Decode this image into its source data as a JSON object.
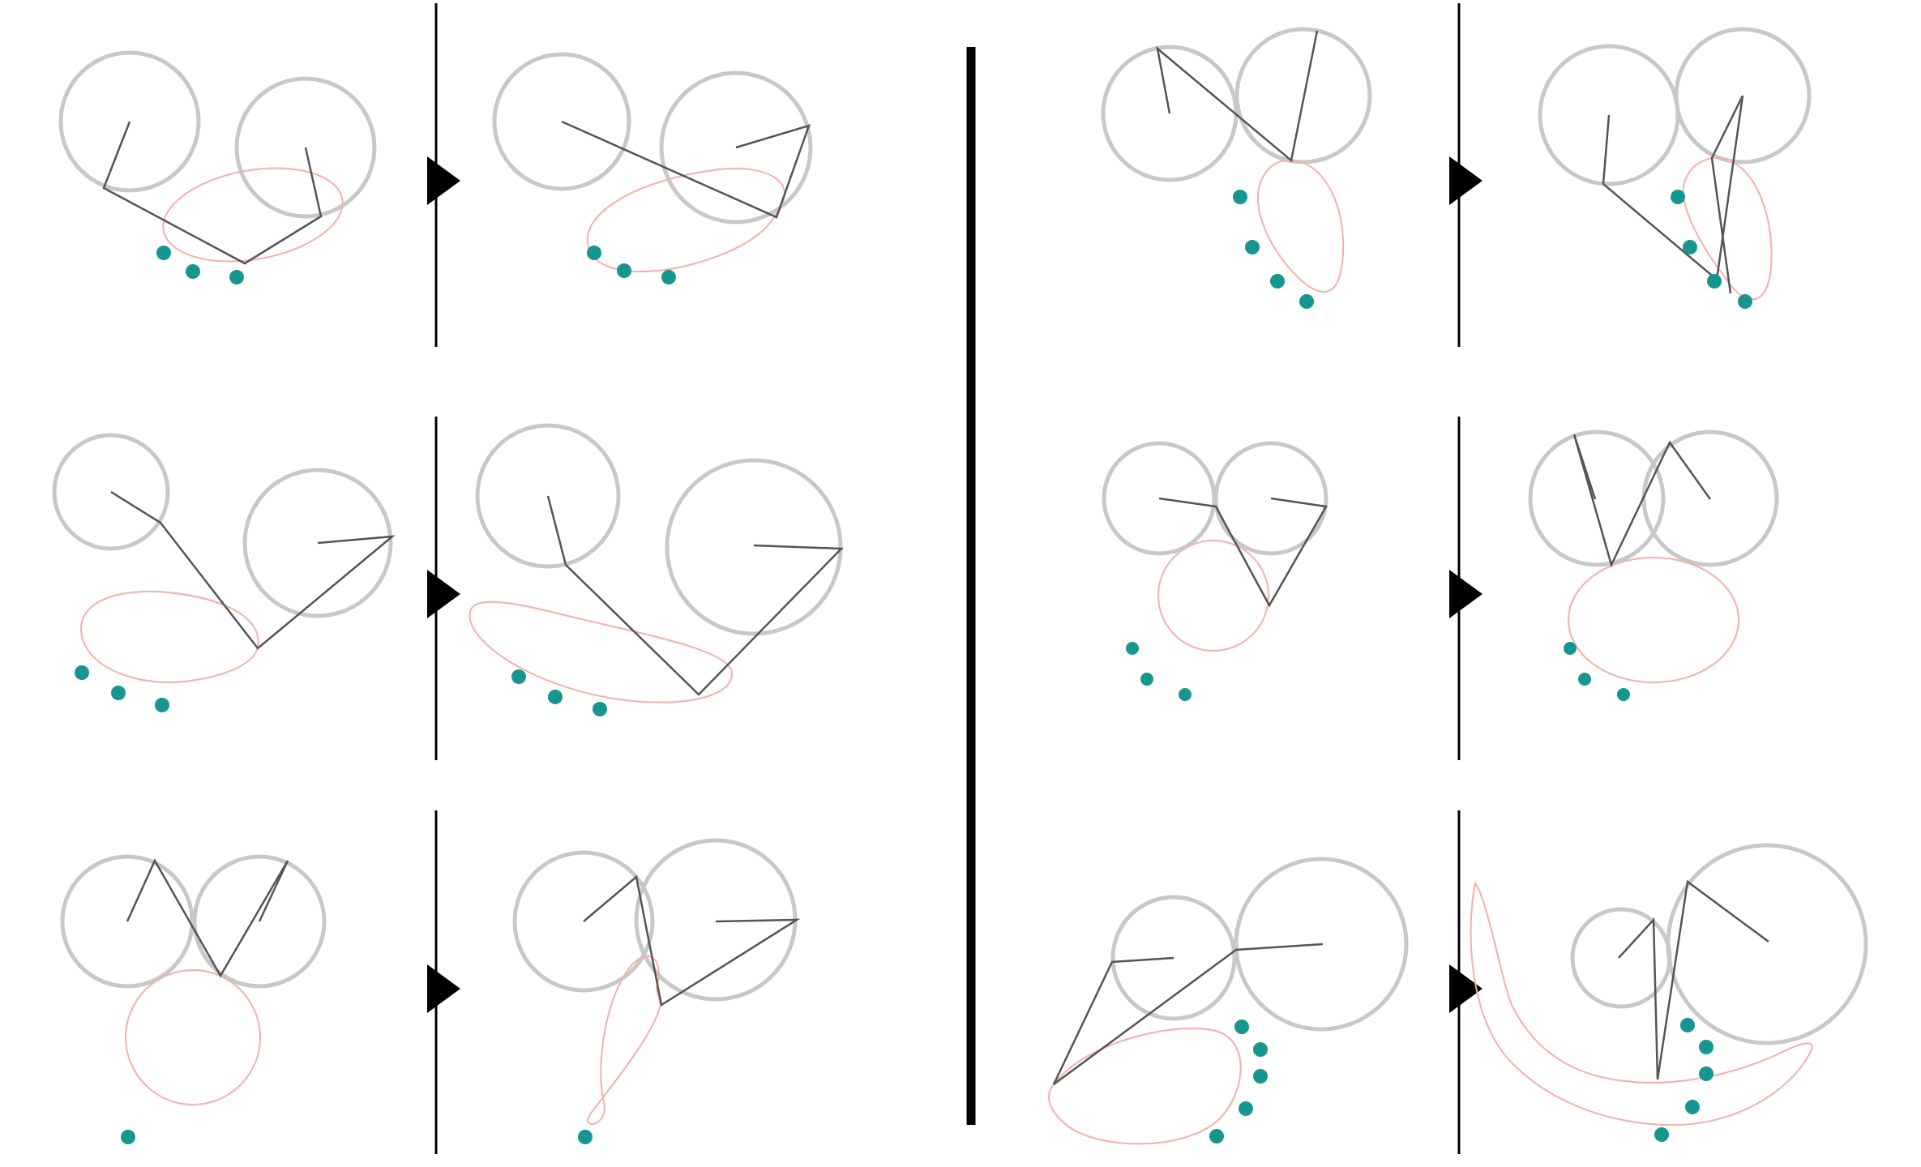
{
  "colors": {
    "background": "#ffffff",
    "circle_stroke": "#c8c8c8",
    "linkage_stroke": "#555555",
    "curve_stroke": "#f4b0a8",
    "target_point": "#17968f",
    "separator": "#000000",
    "arrow": "#000000"
  },
  "groups": [
    {
      "side": "left",
      "row": 1
    },
    {
      "side": "left",
      "row": 2
    },
    {
      "side": "left",
      "row": 3
    },
    {
      "side": "right",
      "row": 1
    },
    {
      "side": "right",
      "row": 2
    },
    {
      "side": "right",
      "row": 3
    }
  ],
  "panel_pair_labels": [
    "before",
    "after"
  ],
  "arrow_icon": "arrow-right-icon"
}
